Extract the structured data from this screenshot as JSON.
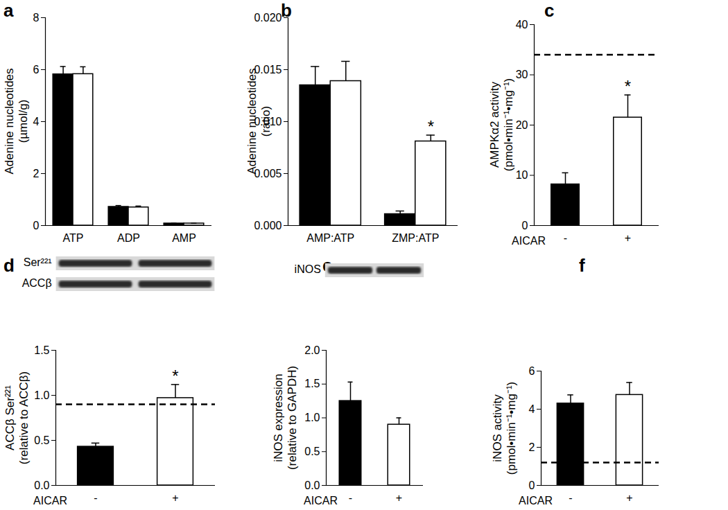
{
  "chart_data": [
    {
      "type": "bar",
      "title": "a",
      "ylabel": "Adenine nucleotides (µmol/g)",
      "categories": [
        "ATP",
        "ADP",
        "AMP"
      ],
      "series": [
        {
          "color": "#000000",
          "values": [
            5.82,
            0.72,
            0.08
          ],
          "errors": [
            0.3,
            0.05,
            0.01
          ]
        },
        {
          "color": "#ffffff",
          "values": [
            5.83,
            0.7,
            0.08
          ],
          "errors": [
            0.28,
            0.05,
            0.01
          ]
        }
      ],
      "ylim": [
        0,
        8
      ],
      "yticks": [
        0,
        2,
        4,
        6,
        8
      ]
    },
    {
      "type": "bar",
      "title": "b",
      "ylabel": "Adenine nucleotides (ratio)",
      "categories": [
        "AMP:ATP",
        "ZMP:ATP"
      ],
      "series": [
        {
          "color": "#000000",
          "values": [
            0.0135,
            0.0011
          ],
          "errors": [
            0.0018,
            0.0003
          ]
        },
        {
          "color": "#ffffff",
          "values": [
            0.0139,
            0.0081
          ],
          "errors": [
            0.0019,
            0.0006
          ]
        }
      ],
      "ylim": [
        0,
        0.02
      ],
      "yticks": [
        {
          "value": 0,
          "label": "0.000"
        },
        {
          "value": 0.005,
          "label": "0.005"
        },
        {
          "value": 0.01,
          "label": "0.010"
        },
        {
          "value": 0.015,
          "label": "0.015"
        },
        {
          "value": 0.02,
          "label": "0.020"
        }
      ],
      "annotations": [
        {
          "category": "ZMP:ATP",
          "series": 1,
          "text": "*"
        }
      ]
    },
    {
      "type": "bar",
      "title": "c",
      "ylabel": "AMPKα2 activity (pmol•min⁻¹•mg⁻¹)",
      "xlabel": "AICAR",
      "categories": [
        "-",
        "+"
      ],
      "values": [
        8.2,
        21.5
      ],
      "errors": [
        2.3,
        4.5
      ],
      "colors": [
        "#000000",
        "#ffffff"
      ],
      "reference_line": 34,
      "ylim": [
        0,
        40
      ],
      "yticks": [
        0,
        10,
        20,
        30,
        40
      ],
      "annotations": [
        {
          "category": "+",
          "text": "*"
        }
      ]
    },
    {
      "type": "bar",
      "title": "d",
      "ylabel": "ACCβ Ser²²¹ (relative to ACCβ)",
      "xlabel": "AICAR",
      "blot_labels": [
        "Ser²²¹",
        "ACCβ"
      ],
      "categories": [
        "-",
        "+"
      ],
      "values": [
        0.43,
        0.97
      ],
      "errors": [
        0.04,
        0.15
      ],
      "colors": [
        "#000000",
        "#ffffff"
      ],
      "reference_line": 0.9,
      "ylim": [
        0,
        1.5
      ],
      "yticks": [
        {
          "value": 0,
          "label": "0.0"
        },
        {
          "value": 0.5,
          "label": "0.5"
        },
        {
          "value": 1,
          "label": "1.0"
        },
        {
          "value": 1.5,
          "label": "1.5"
        }
      ],
      "annotations": [
        {
          "category": "+",
          "text": "*"
        }
      ]
    },
    {
      "type": "bar",
      "title": "e",
      "ylabel": "iNOS expression (relative to GAPDH)",
      "xlabel": "AICAR",
      "blot_labels": [
        "iNOS"
      ],
      "categories": [
        "-",
        "+"
      ],
      "values": [
        1.25,
        0.9
      ],
      "errors": [
        0.28,
        0.1
      ],
      "colors": [
        "#000000",
        "#ffffff"
      ],
      "ylim": [
        0,
        2
      ],
      "yticks": [
        {
          "value": 0,
          "label": "0.0"
        },
        {
          "value": 0.5,
          "label": "0.5"
        },
        {
          "value": 1,
          "label": "1.0"
        },
        {
          "value": 1.5,
          "label": "1.5"
        },
        {
          "value": 2,
          "label": "2.0"
        }
      ]
    },
    {
      "type": "bar",
      "title": "f",
      "ylabel": "iNOS activity (pmol•min⁻¹•mg⁻¹)",
      "xlabel": "AICAR",
      "categories": [
        "-",
        "+"
      ],
      "values": [
        4.3,
        4.75
      ],
      "errors": [
        0.45,
        0.65
      ],
      "colors": [
        "#000000",
        "#ffffff"
      ],
      "reference_line": 1.2,
      "ylim": [
        0,
        6
      ],
      "yticks": [
        0,
        2,
        4,
        6
      ]
    }
  ]
}
